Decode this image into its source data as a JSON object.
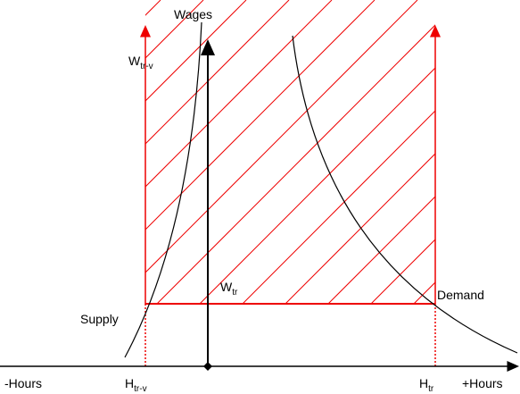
{
  "axis_labels": {
    "y": "Wages",
    "x_negative": "-Hours",
    "x_positive": "+Hours"
  },
  "wage_labels": [
    {
      "text": "W",
      "sub": "tr-v"
    },
    {
      "text": "W",
      "sub": "tr"
    }
  ],
  "hour_labels": [
    {
      "text": "H",
      "sub": "tr-v"
    },
    {
      "text": "H",
      "sub": "tr"
    }
  ],
  "curves": {
    "supply": "Supply",
    "demand": "Demand"
  }
}
